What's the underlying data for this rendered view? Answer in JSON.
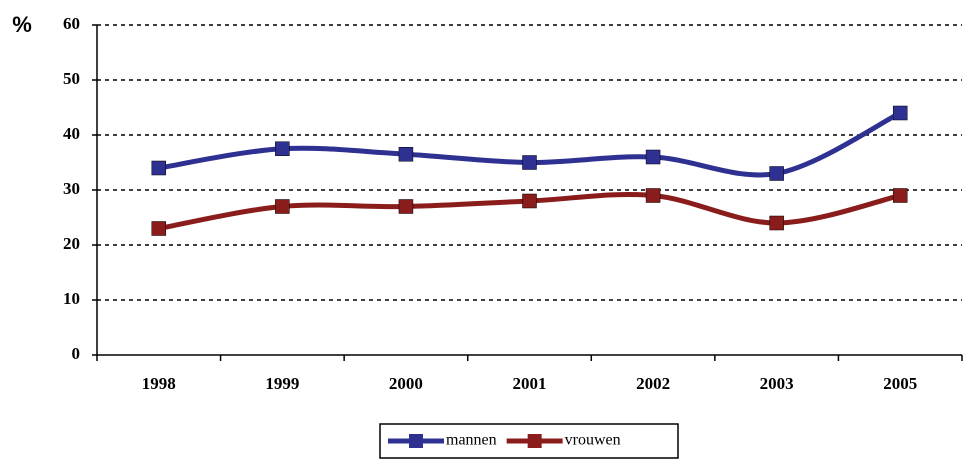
{
  "chart_data": {
    "type": "line",
    "y_label": "%",
    "categories": [
      "1998",
      "1999",
      "2000",
      "2001",
      "2002",
      "2003",
      "2005"
    ],
    "series": [
      {
        "name": "mannen",
        "color": "#2e3092",
        "values": [
          34,
          37.5,
          36.5,
          35,
          36,
          33,
          44
        ]
      },
      {
        "name": "vrouwen",
        "color": "#8b1c1c",
        "values": [
          23,
          27,
          27,
          28,
          29,
          24,
          29
        ]
      }
    ],
    "ylim": [
      0,
      60
    ],
    "yticks": [
      0,
      10,
      20,
      30,
      40,
      50,
      60
    ],
    "grid": true,
    "smooth": true,
    "legend": "bottom"
  }
}
